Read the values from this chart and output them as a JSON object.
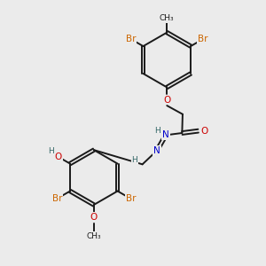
{
  "bg_color": "#ebebeb",
  "bond_color": "#1a1a1a",
  "bond_width": 1.4,
  "atom_colors": {
    "Br": "#cc6600",
    "O": "#cc0000",
    "N": "#0000cc",
    "H": "#336666",
    "C": "#1a1a1a"
  },
  "font_size_atom": 7.5,
  "font_size_small": 6.5
}
